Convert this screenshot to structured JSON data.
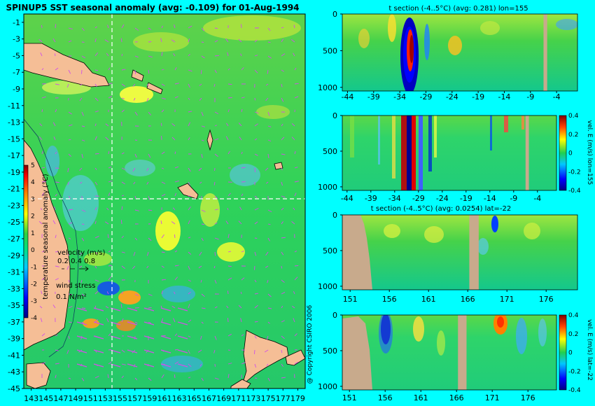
{
  "main_title": "SPINUP5 SST seasonal anomaly (avg: -0.109) for 01-Aug-1994",
  "copyright": "@ Copyright CSIRO 2006",
  "colors": {
    "background": "#00ffff",
    "land": "#f5be96",
    "ocean_mid": "#2fd65a",
    "section_land": "#c8aa8c",
    "vectors": "#d050e8",
    "guide_line": "#ffffff"
  },
  "chart_data": [
    {
      "type": "heatmap",
      "title": "SPINUP5 SST seasonal anomaly (avg: -0.109) for 01-Aug-1994",
      "x_ticks": [
        "143",
        "145",
        "147",
        "149",
        "151",
        "153",
        "155",
        "157",
        "159",
        "161",
        "163",
        "165",
        "167",
        "169",
        "171",
        "173",
        "175",
        "177",
        "179"
      ],
      "y_ticks": [
        "-1",
        "-3",
        "-5",
        "-7",
        "-9",
        "-11",
        "-13",
        "-15",
        "-17",
        "-19",
        "-21",
        "-23",
        "-25",
        "-27",
        "-29",
        "-31",
        "-33",
        "-35",
        "-37",
        "-39",
        "-41",
        "-43",
        "-45"
      ],
      "xlim": [
        142,
        180
      ],
      "ylim": [
        -45,
        0
      ],
      "guide_lon": 155,
      "guide_lat": -22,
      "colorbar": {
        "label": "temperature seasonal anomaly (°C)",
        "ticks": [
          "5",
          "4",
          "3",
          "2",
          "1",
          "0",
          "-1",
          "-2",
          "-3",
          "-4"
        ],
        "range": [
          -4,
          5
        ]
      },
      "legend": {
        "velocity_label": "velocity (m/s)",
        "velocity_scale": "0.2 0.4 0.8",
        "wind_label": "wind stress",
        "wind_scale": "0.1 N/m²"
      }
    },
    {
      "type": "heatmap",
      "title": "t section (-4..5°C) (avg: 0.281) lon=155",
      "x_ticks": [
        "-44",
        "-39",
        "-34",
        "-29",
        "-24",
        "-19",
        "-14",
        "-9",
        "-4"
      ],
      "y_ticks": [
        "0",
        "500",
        "1000"
      ],
      "xlim": [
        -45,
        0
      ],
      "ylim": [
        1050,
        0
      ],
      "land_x": [
        -6.5,
        -5.8
      ]
    },
    {
      "type": "heatmap",
      "title": "",
      "x_ticks": [
        "-44",
        "-39",
        "-34",
        "-29",
        "-24",
        "-19",
        "-14",
        "-9",
        "-4"
      ],
      "y_ticks": [
        "0",
        "500",
        "1000"
      ],
      "xlim": [
        -45,
        0
      ],
      "ylim": [
        1050,
        0
      ],
      "land_x": [
        -6.5,
        -5.8
      ],
      "colorbar": {
        "label": "vel. E (m/s) lon=155",
        "ticks": [
          "0.4",
          "0.2",
          "0",
          "-0.2",
          "-0.4"
        ],
        "range": [
          -0.4,
          0.4
        ]
      }
    },
    {
      "type": "heatmap",
      "title": "t section (-4..5°C) (avg: 0.0254) lat=-22",
      "x_ticks": [
        "151",
        "156",
        "161",
        "166",
        "171",
        "176"
      ],
      "y_ticks": [
        "0",
        "500",
        "1000"
      ],
      "xlim": [
        150,
        180
      ],
      "ylim": [
        1050,
        0
      ],
      "land_x": [
        166.2,
        167.4
      ]
    },
    {
      "type": "heatmap",
      "title": "",
      "x_ticks": [
        "151",
        "156",
        "161",
        "166",
        "171",
        "176"
      ],
      "y_ticks": [
        "0",
        "500",
        "1000"
      ],
      "xlim": [
        150,
        180
      ],
      "ylim": [
        1050,
        0
      ],
      "land_x": [
        166.2,
        167.4
      ],
      "colorbar": {
        "label": "vel. E (m/s) lat=-22",
        "ticks": [
          "0.4",
          "0.2",
          "0",
          "-0.2",
          "-0.4"
        ],
        "range": [
          -0.4,
          0.4
        ]
      }
    }
  ]
}
